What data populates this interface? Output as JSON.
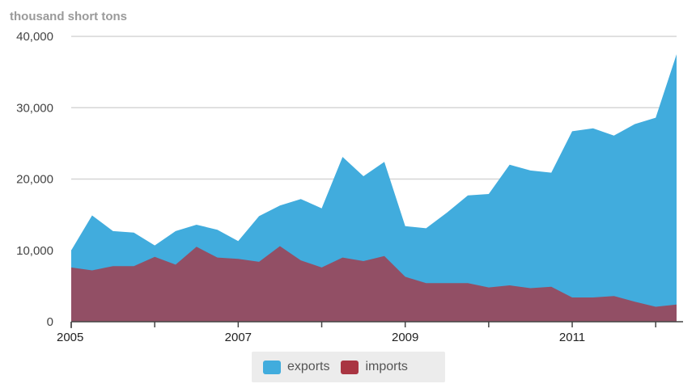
{
  "chart_data": {
    "type": "area",
    "unit_label": "thousand short tons",
    "ylim": [
      0,
      40000
    ],
    "y_ticks": [
      "0",
      "10,000",
      "20,000",
      "30,000",
      "40,000"
    ],
    "y_tick_values": [
      0,
      10000,
      20000,
      30000,
      40000
    ],
    "x_tick_labels": [
      "2005",
      "2007",
      "2009",
      "2011"
    ],
    "x_tick_values": [
      2005.0,
      2007.0,
      2009.0,
      2011.0
    ],
    "xlim": [
      2005.0,
      2012.25
    ],
    "grid": true,
    "legend_position": "bottom-center",
    "x": [
      2005.0,
      2005.25,
      2005.5,
      2005.75,
      2006.0,
      2006.25,
      2006.5,
      2006.75,
      2007.0,
      2007.25,
      2007.5,
      2007.75,
      2008.0,
      2008.25,
      2008.5,
      2008.75,
      2009.0,
      2009.25,
      2009.5,
      2009.75,
      2010.0,
      2010.25,
      2010.5,
      2010.75,
      2011.0,
      2011.25,
      2011.5,
      2011.75,
      2012.0,
      2012.25
    ],
    "series": [
      {
        "name": "exports",
        "color": "#41acdd",
        "values": [
          10000,
          14900,
          12700,
          12500,
          10700,
          12700,
          13600,
          12900,
          11300,
          14800,
          16300,
          17200,
          15900,
          23100,
          20400,
          22400,
          13400,
          13100,
          15300,
          17700,
          17900,
          22000,
          21200,
          20900,
          26700,
          27100,
          26100,
          27700,
          28600,
          37500
        ]
      },
      {
        "name": "imports",
        "color": "#a93542",
        "values": [
          7600,
          7200,
          7800,
          7800,
          9100,
          8000,
          10500,
          9000,
          8800,
          8400,
          10600,
          8600,
          7600,
          9000,
          8500,
          9200,
          6300,
          5400,
          5400,
          5400,
          4800,
          5100,
          4700,
          4900,
          3400,
          3400,
          3600,
          2800,
          2100,
          2400
        ]
      }
    ]
  }
}
